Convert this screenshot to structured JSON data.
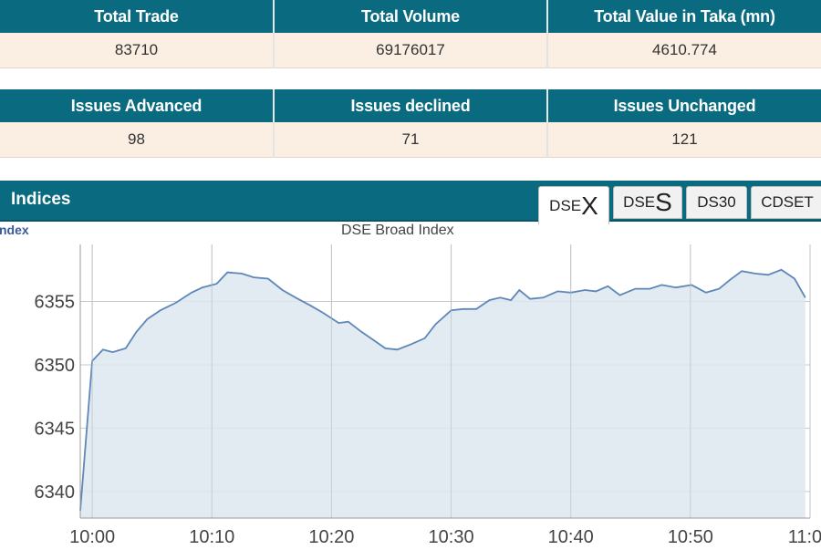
{
  "summary": {
    "headers": [
      "Total Trade",
      "Total Volume",
      "Total Value in Taka (mn)"
    ],
    "values": [
      "83710",
      "69176017",
      "4610.774"
    ]
  },
  "issues": {
    "headers": [
      "Issues Advanced",
      "Issues declined",
      "Issues Unchanged"
    ],
    "values": [
      "98",
      "71",
      "121"
    ]
  },
  "indices": {
    "title": "Indices",
    "tabs": [
      {
        "prefix": "DSE",
        "suffix": "X",
        "active": true
      },
      {
        "prefix": "DSE",
        "suffix": "S",
        "active": false
      },
      {
        "label": "DS30",
        "active": false
      },
      {
        "label": "CDSET",
        "active": false
      }
    ]
  },
  "chart_header": {
    "left_label": "ndex",
    "title": "DSE Broad Index"
  },
  "colors": {
    "header_bg": "#096a80",
    "row_bg": "#fbeee2",
    "line": "#5e87b8",
    "area": "#dde6f0"
  },
  "chart_data": {
    "type": "area",
    "title": "DSE Broad Index",
    "x_ticks": [
      "10:00",
      "10:10",
      "10:20",
      "10:30",
      "10:40",
      "10:50",
      "11:00"
    ],
    "y_ticks": [
      6340,
      6345,
      6350,
      6355
    ],
    "xlim_minutes": [
      -1,
      60
    ],
    "ylim": [
      6337.9,
      6359.5
    ],
    "grid": true,
    "series": [
      {
        "x": [
          -1.0,
          0.0,
          0.9,
          1.7,
          2.8,
          3.7,
          4.6,
          5.7,
          7.0,
          8.3,
          9.2,
          10.4,
          11.3,
          12.5,
          13.5,
          14.7,
          15.9,
          17.0,
          18.2,
          19.3,
          20.6,
          21.4,
          22.5,
          23.6,
          24.5,
          25.5,
          26.6,
          27.8,
          28.7,
          30.0,
          31.0,
          32.1,
          33.2,
          34.1,
          35.0,
          35.7,
          36.6,
          37.7,
          38.9,
          40.0,
          41.2,
          42.1,
          43.1,
          44.1,
          45.4,
          46.6,
          47.6,
          48.8,
          50.1,
          51.3,
          52.4,
          53.3,
          54.3,
          55.4,
          56.5,
          57.6,
          58.7,
          59.6
        ],
        "values": [
          6338.5,
          6350.3,
          6351.2,
          6351.0,
          6351.3,
          6352.6,
          6353.6,
          6354.3,
          6354.9,
          6355.7,
          6356.1,
          6356.4,
          6357.3,
          6357.2,
          6356.9,
          6356.8,
          6355.9,
          6355.3,
          6354.7,
          6354.1,
          6353.3,
          6353.4,
          6352.6,
          6351.9,
          6351.3,
          6351.2,
          6351.6,
          6352.1,
          6353.2,
          6354.3,
          6354.4,
          6354.4,
          6355.1,
          6355.3,
          6355.1,
          6355.9,
          6355.2,
          6355.3,
          6355.8,
          6355.7,
          6355.9,
          6355.8,
          6356.2,
          6355.5,
          6356.0,
          6356.0,
          6356.3,
          6356.1,
          6356.3,
          6355.7,
          6356.0,
          6356.7,
          6357.4,
          6357.2,
          6357.1,
          6357.5,
          6356.8,
          6355.3
        ]
      }
    ]
  }
}
